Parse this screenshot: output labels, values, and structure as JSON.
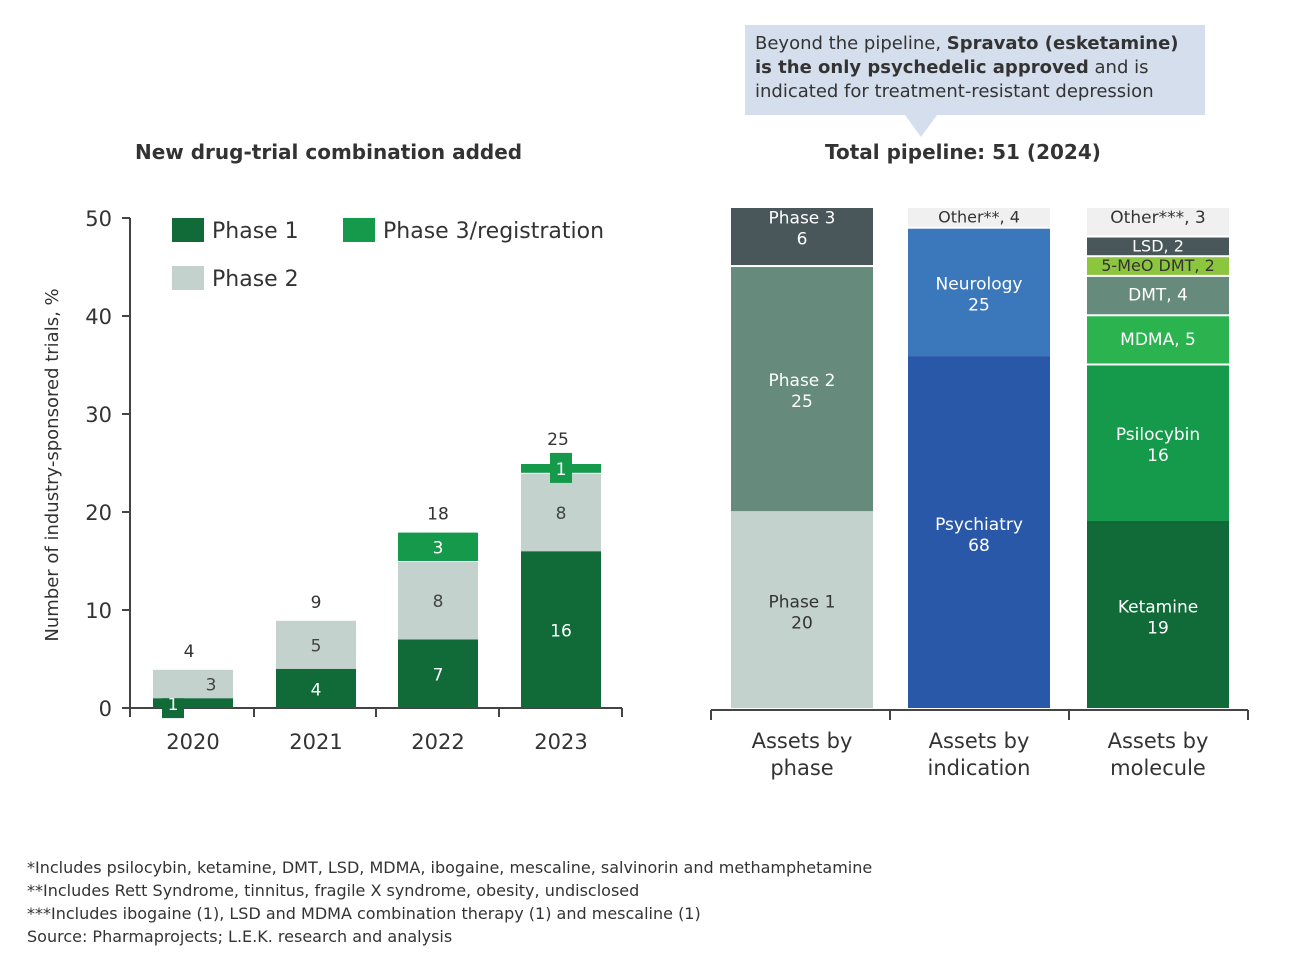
{
  "callout": {
    "pre": "Beyond the pipeline, ",
    "bold": "Spravato (esketamine) is the only psychedelic approved",
    "post": " and is indicated for treatment-resistant depression"
  },
  "chart_data": [
    {
      "type": "bar",
      "stacked": true,
      "title": "New drug-trial combination added",
      "ylabel": "Number of industry-sponsored trials, %",
      "xlabel": "",
      "ylim": [
        0,
        50
      ],
      "yticks": [
        0,
        10,
        20,
        30,
        40,
        50
      ],
      "legend": "top-left",
      "categories": [
        "2020",
        "2021",
        "2022",
        "2023"
      ],
      "series": [
        {
          "name": "Phase 1",
          "color": "#116b38",
          "values": [
            1,
            4,
            7,
            16
          ]
        },
        {
          "name": "Phase 2",
          "color": "#c3d2cd",
          "values": [
            3,
            5,
            8,
            8
          ]
        },
        {
          "name": "Phase 3/registration",
          "color": "#15994a",
          "values": [
            0,
            0,
            3,
            1
          ]
        }
      ],
      "totals": [
        4,
        9,
        18,
        25
      ]
    },
    {
      "type": "bar",
      "stacked": true,
      "title": "Total pipeline: 51 (2024)",
      "categories": [
        "Assets by phase",
        "Assets by indication",
        "Assets by molecule"
      ],
      "stacks": [
        [
          {
            "label": "Phase 1",
            "value": 20,
            "color": "#c3d2cd"
          },
          {
            "label": "Phase 2",
            "value": 25,
            "color": "#668a7b"
          },
          {
            "label": "Phase 3",
            "value": 6,
            "color": "#4a575a"
          }
        ],
        [
          {
            "label": "Psychiatry",
            "value": 68,
            "color": "#2a58a8"
          },
          {
            "label": "Neurology",
            "value": 25,
            "color": "#3a77bb"
          },
          {
            "label": "Other**",
            "value": 4,
            "color": "#f0f0f0"
          }
        ],
        [
          {
            "label": "Ketamine",
            "value": 19,
            "color": "#116b38"
          },
          {
            "label": "Psilocybin",
            "value": 16,
            "color": "#15994a"
          },
          {
            "label": "MDMA",
            "value": 5,
            "color": "#2bb34f"
          },
          {
            "label": "DMT",
            "value": 4,
            "color": "#668a7b"
          },
          {
            "label": "5-MeO DMT",
            "value": 2,
            "color": "#8cc63f"
          },
          {
            "label": "LSD",
            "value": 2,
            "color": "#4a575a"
          },
          {
            "label": "Other***",
            "value": 3,
            "color": "#f0f0f0"
          }
        ]
      ]
    }
  ],
  "footnotes": [
    "*Includes psilocybin, ketamine, DMT, LSD, MDMA, ibogaine, mescaline, salvinorin and methamphetamine",
    "**Includes Rett Syndrome, tinnitus, fragile X syndrome, obesity, undisclosed",
    "***Includes ibogaine (1), LSD and MDMA combination therapy (1) and mescaline (1)",
    "Source: Pharmaprojects; L.E.K. research and analysis"
  ]
}
